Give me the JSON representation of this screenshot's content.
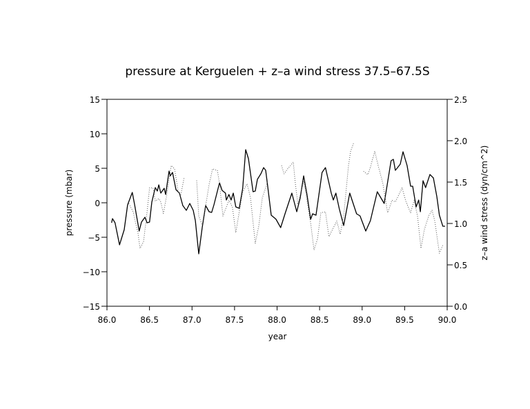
{
  "chart_data": {
    "type": "line",
    "title": "pressure at Kerguelen + z–a wind stress 37.5–67.5S",
    "xlabel": "year",
    "ylabel": "pressure (mbar)",
    "y2label": "z–a wind stress (dyn/cm^2)",
    "xlim": [
      86.0,
      90.0
    ],
    "ylim": [
      -15,
      15
    ],
    "y2lim": [
      0.0,
      2.5
    ],
    "grid": false,
    "xticks": [
      "86.0",
      "86.5",
      "87.0",
      "87.5",
      "88.0",
      "88.5",
      "89.0",
      "89.5",
      "90.0"
    ],
    "yticks": [
      "−15",
      "−10",
      "−5",
      "0",
      "5",
      "10",
      "15"
    ],
    "y2ticks": [
      "0.0",
      "0.5",
      "1.0",
      "1.5",
      "2.0",
      "2.5"
    ],
    "series": [
      {
        "style": "solid",
        "axis": "left",
        "color": "#000000",
        "points": [
          [
            86.054,
            -2.9
          ],
          [
            86.065,
            -2.3
          ],
          [
            86.095,
            -2.9
          ],
          [
            86.148,
            -6.1
          ],
          [
            86.203,
            -3.9
          ],
          [
            86.243,
            -0.3
          ],
          [
            86.298,
            1.5
          ],
          [
            86.325,
            -0.3
          ],
          [
            86.379,
            -4.1
          ],
          [
            86.406,
            -2.8
          ],
          [
            86.446,
            -2.1
          ],
          [
            86.471,
            -2.9
          ],
          [
            86.501,
            -2.8
          ],
          [
            86.527,
            0.1
          ],
          [
            86.568,
            2.2
          ],
          [
            86.592,
            1.7
          ],
          [
            86.609,
            2.6
          ],
          [
            86.633,
            1.4
          ],
          [
            86.673,
            2.1
          ],
          [
            86.69,
            1.2
          ],
          [
            86.73,
            4.6
          ],
          [
            86.744,
            3.9
          ],
          [
            86.771,
            4.4
          ],
          [
            86.811,
            1.9
          ],
          [
            86.852,
            1.4
          ],
          [
            86.892,
            -0.4
          ],
          [
            86.933,
            -1.1
          ],
          [
            86.974,
            -0.1
          ],
          [
            87.014,
            -1.1
          ],
          [
            87.039,
            -2.6
          ],
          [
            87.079,
            -7.4
          ],
          [
            87.12,
            -3.6
          ],
          [
            87.16,
            -0.4
          ],
          [
            87.201,
            -1.3
          ],
          [
            87.231,
            -1.4
          ],
          [
            87.258,
            -0.3
          ],
          [
            87.323,
            2.9
          ],
          [
            87.353,
            1.8
          ],
          [
            87.393,
            1.4
          ],
          [
            87.404,
            0.4
          ],
          [
            87.434,
            1.2
          ],
          [
            87.46,
            0.4
          ],
          [
            87.485,
            1.4
          ],
          [
            87.515,
            -0.6
          ],
          [
            87.555,
            -0.8
          ],
          [
            87.596,
            2.1
          ],
          [
            87.631,
            7.7
          ],
          [
            87.663,
            6.4
          ],
          [
            87.718,
            1.6
          ],
          [
            87.744,
            1.7
          ],
          [
            87.769,
            3.4
          ],
          [
            87.809,
            4.2
          ],
          [
            87.842,
            5.1
          ],
          [
            87.866,
            4.7
          ],
          [
            87.89,
            2.4
          ],
          [
            87.931,
            -1.8
          ],
          [
            87.98,
            -2.3
          ],
          [
            87.988,
            -2.4
          ],
          [
            88.042,
            -3.6
          ],
          [
            88.093,
            -1.6
          ],
          [
            88.174,
            1.4
          ],
          [
            88.231,
            -1.3
          ],
          [
            88.272,
            0.7
          ],
          [
            88.312,
            3.9
          ],
          [
            88.353,
            1.1
          ],
          [
            88.394,
            -2.4
          ],
          [
            88.418,
            -1.6
          ],
          [
            88.458,
            -1.8
          ],
          [
            88.529,
            4.4
          ],
          [
            88.569,
            5.1
          ],
          [
            88.637,
            1.4
          ],
          [
            88.661,
            0.4
          ],
          [
            88.691,
            1.4
          ],
          [
            88.732,
            -0.9
          ],
          [
            88.783,
            -3.3
          ],
          [
            88.854,
            1.4
          ],
          [
            88.935,
            -1.6
          ],
          [
            88.975,
            -1.9
          ],
          [
            89.043,
            -4.1
          ],
          [
            89.097,
            -2.6
          ],
          [
            89.178,
            1.6
          ],
          [
            89.259,
            -0.1
          ],
          [
            89.34,
            6.1
          ],
          [
            89.367,
            6.3
          ],
          [
            89.391,
            4.7
          ],
          [
            89.448,
            5.6
          ],
          [
            89.481,
            7.4
          ],
          [
            89.529,
            5.4
          ],
          [
            89.57,
            2.4
          ],
          [
            89.594,
            2.4
          ],
          [
            89.635,
            -0.6
          ],
          [
            89.665,
            0.4
          ],
          [
            89.684,
            -1.3
          ],
          [
            89.716,
            3.2
          ],
          [
            89.746,
            2.2
          ],
          [
            89.797,
            4.1
          ],
          [
            89.838,
            3.6
          ],
          [
            89.878,
            0.9
          ],
          [
            89.908,
            -1.8
          ],
          [
            89.949,
            -3.4
          ],
          [
            89.976,
            -3.4
          ]
        ]
      },
      {
        "style": "dotted",
        "axis": "right",
        "color": "#000000",
        "points": [
          [
            86.257,
            1.24
          ],
          [
            86.308,
            1.14
          ],
          [
            86.365,
            0.88
          ],
          [
            86.389,
            0.7
          ],
          [
            86.43,
            0.78
          ],
          [
            86.471,
            1.14
          ],
          [
            86.501,
            1.43
          ],
          [
            86.541,
            1.43
          ],
          [
            86.568,
            1.27
          ],
          [
            86.609,
            1.3
          ],
          [
            86.633,
            1.26
          ],
          [
            86.663,
            1.12
          ],
          [
            86.703,
            1.34
          ],
          [
            86.755,
            1.7
          ],
          [
            86.795,
            1.66
          ],
          [
            86.836,
            1.39
          ],
          [
            86.866,
            1.33
          ],
          [
            86.906,
            1.55
          ],
          null,
          [
            87.055,
            1.52
          ],
          [
            87.079,
            1.09
          ],
          [
            87.12,
            0.98
          ],
          [
            87.176,
            1.31
          ],
          [
            87.201,
            1.47
          ],
          [
            87.241,
            1.66
          ],
          [
            87.298,
            1.64
          ],
          [
            87.323,
            1.48
          ],
          [
            87.363,
            1.09
          ],
          [
            87.434,
            1.28
          ],
          [
            87.474,
            1.2
          ],
          [
            87.515,
            0.89
          ],
          [
            87.555,
            1.14
          ],
          [
            87.596,
            1.38
          ],
          [
            87.647,
            1.48
          ],
          [
            87.688,
            1.31
          ],
          [
            87.744,
            0.76
          ],
          [
            87.785,
            0.97
          ],
          [
            87.826,
            1.31
          ],
          [
            87.866,
            1.43
          ],
          [
            87.89,
            1.51
          ],
          null,
          [
            88.053,
            1.7
          ],
          [
            88.083,
            1.6
          ],
          [
            88.124,
            1.66
          ],
          [
            88.191,
            1.74
          ],
          [
            88.215,
            1.48
          ],
          [
            88.245,
            1.23
          ],
          [
            88.312,
            1.51
          ],
          [
            88.337,
            1.37
          ],
          [
            88.394,
            1.01
          ],
          [
            88.434,
            0.68
          ],
          [
            88.475,
            0.81
          ],
          [
            88.515,
            1.13
          ],
          [
            88.569,
            1.14
          ],
          [
            88.609,
            0.84
          ],
          [
            88.702,
            1.03
          ],
          [
            88.742,
            0.87
          ],
          [
            88.783,
            1.09
          ],
          [
            88.84,
            1.7
          ],
          [
            88.864,
            1.87
          ],
          [
            88.902,
            1.98
          ],
          null,
          [
            89.016,
            1.63
          ],
          [
            89.067,
            1.59
          ],
          [
            89.097,
            1.68
          ],
          [
            89.148,
            1.87
          ],
          [
            89.189,
            1.7
          ],
          [
            89.245,
            1.48
          ],
          [
            89.3,
            1.13
          ],
          [
            89.351,
            1.28
          ],
          [
            89.391,
            1.26
          ],
          [
            89.47,
            1.43
          ],
          [
            89.513,
            1.27
          ],
          [
            89.57,
            1.13
          ],
          [
            89.611,
            1.28
          ],
          [
            89.651,
            1.09
          ],
          [
            89.692,
            0.7
          ],
          [
            89.732,
            0.93
          ],
          [
            89.787,
            1.1
          ],
          [
            89.822,
            1.16
          ],
          [
            89.854,
            1.03
          ],
          [
            89.908,
            0.64
          ],
          [
            89.949,
            0.74
          ]
        ]
      }
    ]
  }
}
